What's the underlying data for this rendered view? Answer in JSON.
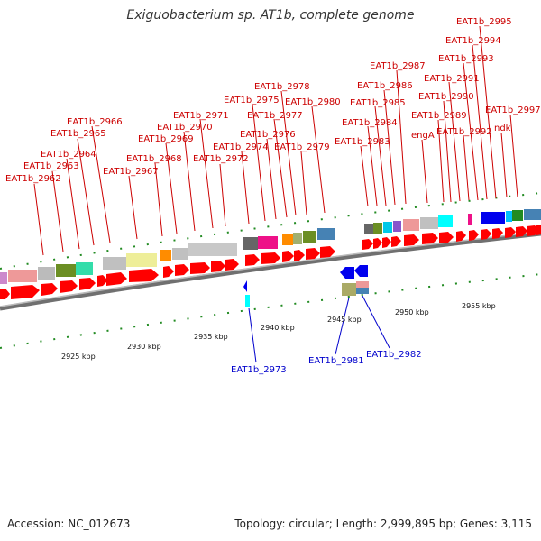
{
  "title": "Exiguobacterium sp. AT1b, complete genome",
  "footer": {
    "accession": "Accession: NC_012673",
    "summary": "Topology: circular; Length: 2,999,895 bp; Genes: 3,115"
  },
  "colors": {
    "top_label": "#cc0000",
    "bottom_label": "#0000cc",
    "gene_arrow": "#ff0000",
    "tick": "#228b22",
    "backbone": "#888888"
  },
  "kbp_labels": [
    "2925 kbp",
    "2930 kbp",
    "2935 kbp",
    "2940 kbp",
    "2945 kbp",
    "2950 kbp",
    "2955 kbp"
  ],
  "top_genes": [
    "EAT1b_2962",
    "EAT1b_2963",
    "EAT1b_2964",
    "EAT1b_2965",
    "EAT1b_2966",
    "EAT1b_2967",
    "EAT1b_2968",
    "EAT1b_2969",
    "EAT1b_2970",
    "EAT1b_2971",
    "EAT1b_2972",
    "EAT1b_2974",
    "EAT1b_2975",
    "EAT1b_2976",
    "EAT1b_2977",
    "EAT1b_2978",
    "EAT1b_2979",
    "EAT1b_2980",
    "EAT1b_2983",
    "EAT1b_2984",
    "EAT1b_2985",
    "EAT1b_2986",
    "EAT1b_2987",
    "engA",
    "EAT1b_2989",
    "EAT1b_2990",
    "EAT1b_2991",
    "EAT1b_2992",
    "EAT1b_2993",
    "EAT1b_2994",
    "EAT1b_2995",
    "ndk",
    "EAT1b_2997"
  ],
  "bottom_genes": [
    "EAT1b_2973",
    "EAT1b_2981",
    "EAT1b_2982"
  ]
}
